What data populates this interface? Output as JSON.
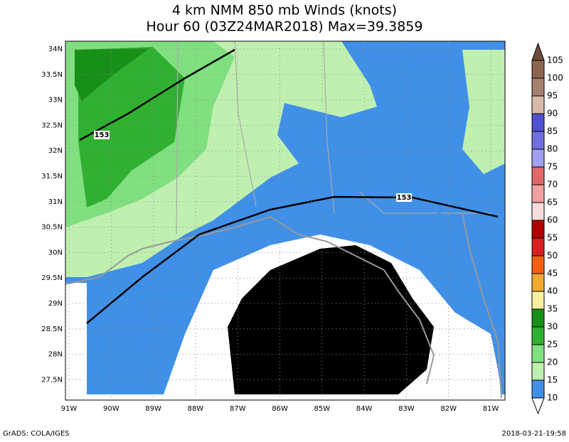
{
  "header": {
    "title": "4 km NMM 850 mb Winds (knots)",
    "subtitle": "Hour 60 (03Z24MAR2018) Max=39.3859"
  },
  "map": {
    "lat_labels": [
      "34N",
      "33.5N",
      "33N",
      "32.5N",
      "32N",
      "31.5N",
      "31N",
      "30.5N",
      "30N",
      "29.5N",
      "29N",
      "28.5N",
      "28N",
      "27.5N"
    ],
    "lon_labels": [
      "91W",
      "90W",
      "89W",
      "88W",
      "87W",
      "86W",
      "85W",
      "84W",
      "83W",
      "82W",
      "81W"
    ],
    "contour_labels": [
      "153",
      "153"
    ]
  },
  "colorbar": {
    "labels": [
      105,
      100,
      95,
      90,
      85,
      80,
      75,
      70,
      65,
      60,
      55,
      50,
      45,
      40,
      35,
      30,
      25,
      20,
      15,
      10
    ],
    "colors": [
      "#6e4a3c",
      "#8c6450",
      "#a88070",
      "#d8b8a8",
      "#5050d0",
      "#7070e0",
      "#a0a0f0",
      "#e06868",
      "#f0a0a0",
      "#f8dcdc",
      "#b00000",
      "#d82020",
      "#f06010",
      "#f0a830",
      "#f8f0a0",
      "#189018",
      "#30b030",
      "#80e080",
      "#c0f0b0",
      "#4090e8",
      "#80b8f0",
      "#ffffff"
    ]
  },
  "footer": {
    "left": "GrADS: COLA/IGES",
    "right": "2018-03-21-19:58"
  }
}
